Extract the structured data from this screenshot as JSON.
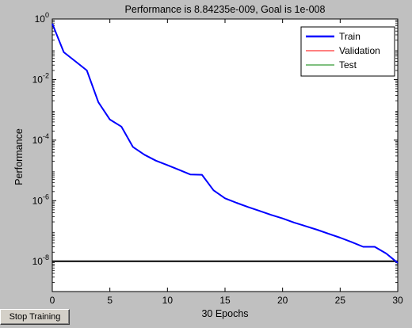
{
  "window": {
    "stop_button_label": "Stop Training"
  },
  "chart_data": {
    "type": "line",
    "title": "Performance is 8.84235e-009, Goal is 1e-008",
    "xlabel": "30 Epochs",
    "ylabel": "Performance",
    "y_scale": "log",
    "xlim": [
      0,
      30
    ],
    "ylim": [
      1e-09,
      1
    ],
    "x_ticks": [
      0,
      5,
      10,
      15,
      20,
      25,
      30
    ],
    "y_ticks": [
      {
        "base": "10",
        "exp": "0",
        "value": 1
      },
      {
        "base": "10",
        "exp": "-2",
        "value": 0.01
      },
      {
        "base": "10",
        "exp": "-4",
        "value": 0.0001
      },
      {
        "base": "10",
        "exp": "-6",
        "value": 1e-06
      },
      {
        "base": "10",
        "exp": "-8",
        "value": 1e-08
      }
    ],
    "grid": false,
    "legend_position": "top-right",
    "series": [
      {
        "name": "Train",
        "color": "#0000ff",
        "x": [
          0,
          1,
          2,
          3,
          4,
          5,
          6,
          7,
          8,
          9,
          10,
          11,
          12,
          13,
          14,
          15,
          16,
          17,
          18,
          19,
          20,
          21,
          22,
          23,
          24,
          25,
          26,
          27,
          28,
          29,
          30
        ],
        "y": [
          0.7,
          0.08,
          0.04,
          0.02,
          0.0018,
          0.00048,
          0.00028,
          6e-05,
          3.3e-05,
          2.1e-05,
          1.5e-05,
          1.05e-05,
          7.3e-06,
          7.2e-06,
          2.2e-06,
          1.2e-06,
          8.5e-07,
          6.2e-07,
          4.6e-07,
          3.4e-07,
          2.6e-07,
          1.9e-07,
          1.45e-07,
          1.1e-07,
          8.1e-08,
          6e-08,
          4.3e-08,
          3e-08,
          3e-08,
          1.8e-08,
          8.84235e-09
        ]
      },
      {
        "name": "Validation",
        "color": "#ff0000",
        "x": [],
        "y": []
      },
      {
        "name": "Test",
        "color": "#008000",
        "x": [],
        "y": []
      }
    ],
    "goal": {
      "value": 1e-08,
      "color": "#000000"
    }
  }
}
